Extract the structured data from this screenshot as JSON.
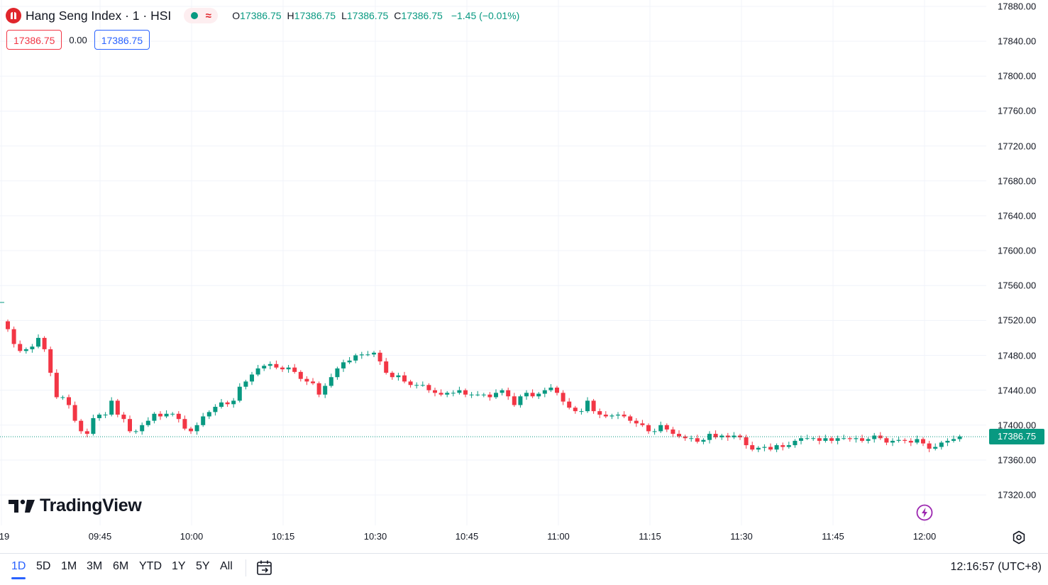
{
  "symbol": {
    "title": "Hang Seng Index · 1 · HSI",
    "logo_icon": "hang-seng-logo-icon"
  },
  "ohlc": {
    "o_label": "O",
    "o_value": "17386.75",
    "h_label": "H",
    "h_value": "17386.75",
    "l_label": "L",
    "l_value": "17386.75",
    "c_label": "C",
    "c_value": "17386.75",
    "change": "−1.45 (−0.01%)"
  },
  "quote": {
    "bid": "17386.75",
    "spread": "0.00",
    "ask": "17386.75"
  },
  "colors": {
    "up": "#089981",
    "down": "#f23645",
    "grid": "#f0f3fa",
    "accent": "#2962ff"
  },
  "price_axis": {
    "ticks": [
      "17880.00",
      "17840.00",
      "17800.00",
      "17760.00",
      "17720.00",
      "17680.00",
      "17640.00",
      "17600.00",
      "17560.00",
      "17520.00",
      "17480.00",
      "17440.00",
      "17400.00",
      "17360.00",
      "17320.00"
    ],
    "last_price": "17386.75"
  },
  "time_axis": {
    "ticks": [
      "19",
      "09:45",
      "10:00",
      "10:15",
      "10:30",
      "10:45",
      "11:00",
      "11:15",
      "11:30",
      "11:45",
      "12:00"
    ]
  },
  "branding": {
    "name": "TradingView"
  },
  "bottom_bar": {
    "ranges": [
      "1D",
      "5D",
      "1M",
      "3M",
      "6M",
      "YTD",
      "1Y",
      "5Y",
      "All"
    ],
    "active_range": "1D",
    "clock": "12:16:57 (UTC+8)"
  },
  "chart_data": {
    "type": "candlestick",
    "interval": "1 minute",
    "y_range": [
      17300,
      17900
    ],
    "x_start": "09:30",
    "x_end": "12:00",
    "grid": true,
    "last_price": 17386.75,
    "close_series": [
      17510,
      17493,
      17485,
      17487,
      17490,
      17500,
      17487,
      17460,
      17432,
      17432,
      17423,
      17405,
      17393,
      17390,
      17408,
      17412,
      17412,
      17428,
      17412,
      17407,
      17393,
      17393,
      17400,
      17405,
      17413,
      17410,
      17413,
      17413,
      17407,
      17396,
      17393,
      17400,
      17410,
      17415,
      17421,
      17426,
      17424,
      17428,
      17444,
      17450,
      17458,
      17465,
      17468,
      17470,
      17466,
      17464,
      17466,
      17461,
      17453,
      17450,
      17448,
      17435,
      17445,
      17455,
      17465,
      17472,
      17474,
      17480,
      17481,
      17481,
      17483,
      17473,
      17460,
      17455,
      17457,
      17450,
      17446,
      17446,
      17446,
      17440,
      17437,
      17435,
      17437,
      17437,
      17440,
      17435,
      17435,
      17435,
      17435,
      17432,
      17437,
      17440,
      17433,
      17423,
      17433,
      17437,
      17433,
      17436,
      17440,
      17443,
      17437,
      17427,
      17420,
      17416,
      17416,
      17428,
      17416,
      17412,
      17410,
      17411,
      17412,
      17410,
      17405,
      17402,
      17400,
      17393,
      17393,
      17400,
      17395,
      17390,
      17387,
      17385,
      17385,
      17381,
      17383,
      17390,
      17386,
      17388,
      17386,
      17388,
      17386,
      17377,
      17372,
      17374,
      17375,
      17372,
      17377,
      17375,
      17377,
      17382,
      17385,
      17385,
      17385,
      17382,
      17385,
      17382,
      17385,
      17385,
      17384,
      17385,
      17382,
      17384,
      17388,
      17385,
      17380,
      17382,
      17383,
      17382,
      17380,
      17384,
      17379,
      17373,
      17375,
      17380,
      17382,
      17384,
      17387
    ]
  }
}
